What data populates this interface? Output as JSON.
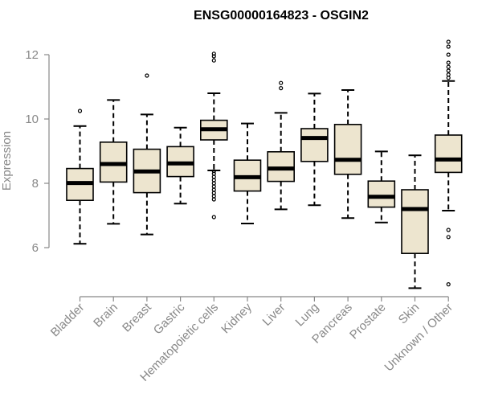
{
  "chart_data": {
    "type": "boxplot",
    "title": "ENSG00000164823 - OSGIN2",
    "xlabel": "",
    "ylabel": "Expression",
    "ylim": [
      4.6,
      12.7
    ],
    "yticks": [
      6,
      8,
      10,
      12
    ],
    "grid": false,
    "legend": "none",
    "colors": {
      "box_fill": "#ede5cf",
      "box_stroke": "#000000",
      "median": "#000000",
      "axis": "#888888",
      "text": "#888888",
      "title": "#000000"
    },
    "categories": [
      "Bladder",
      "Brain",
      "Breast",
      "Gastric",
      "Hematopoietic cells",
      "Kidney",
      "Liver",
      "Lung",
      "Pancreas",
      "Prostate",
      "Skin",
      "Unknown / Other"
    ],
    "boxes": [
      {
        "category": "Bladder",
        "whisker_low": 6.12,
        "q1": 7.47,
        "median": 8.01,
        "q3": 8.46,
        "whisker_high": 9.78,
        "outliers": [
          10.25
        ]
      },
      {
        "category": "Brain",
        "whisker_low": 6.74,
        "q1": 8.04,
        "median": 8.6,
        "q3": 9.28,
        "whisker_high": 10.59,
        "outliers": []
      },
      {
        "category": "Breast",
        "whisker_low": 6.41,
        "q1": 7.71,
        "median": 8.37,
        "q3": 9.06,
        "whisker_high": 10.14,
        "outliers": [
          11.35
        ]
      },
      {
        "category": "Gastric",
        "whisker_low": 7.37,
        "q1": 8.21,
        "median": 8.62,
        "q3": 9.14,
        "whisker_high": 9.73,
        "outliers": []
      },
      {
        "category": "Hematopoietic cells",
        "whisker_low": 8.4,
        "q1": 9.35,
        "median": 9.68,
        "q3": 9.96,
        "whisker_high": 10.8,
        "outliers": [
          11.82,
          11.95,
          12.03,
          8.38,
          8.3,
          8.2,
          8.1,
          8.0,
          7.9,
          7.8,
          7.7,
          7.6,
          7.5,
          6.95
        ]
      },
      {
        "category": "Kidney",
        "whisker_low": 6.75,
        "q1": 7.76,
        "median": 8.19,
        "q3": 8.72,
        "whisker_high": 9.86,
        "outliers": []
      },
      {
        "category": "Liver",
        "whisker_low": 7.19,
        "q1": 8.06,
        "median": 8.46,
        "q3": 8.98,
        "whisker_high": 10.19,
        "outliers": [
          10.96,
          11.12
        ]
      },
      {
        "category": "Lung",
        "whisker_low": 7.32,
        "q1": 8.68,
        "median": 9.41,
        "q3": 9.7,
        "whisker_high": 10.79,
        "outliers": []
      },
      {
        "category": "Pancreas",
        "whisker_low": 6.92,
        "q1": 8.28,
        "median": 8.73,
        "q3": 9.83,
        "whisker_high": 10.9,
        "outliers": []
      },
      {
        "category": "Prostate",
        "whisker_low": 6.78,
        "q1": 7.26,
        "median": 7.58,
        "q3": 8.07,
        "whisker_high": 8.99,
        "outliers": []
      },
      {
        "category": "Skin",
        "whisker_low": 4.74,
        "q1": 5.82,
        "median": 7.2,
        "q3": 7.8,
        "whisker_high": 8.87,
        "outliers": []
      },
      {
        "category": "Unknown / Other",
        "whisker_low": 7.15,
        "q1": 8.34,
        "median": 8.74,
        "q3": 9.5,
        "whisker_high": 11.18,
        "outliers": [
          12.4,
          12.25,
          12.0,
          11.75,
          11.62,
          11.5,
          11.38,
          11.28,
          6.55,
          6.33,
          4.86
        ]
      }
    ]
  }
}
